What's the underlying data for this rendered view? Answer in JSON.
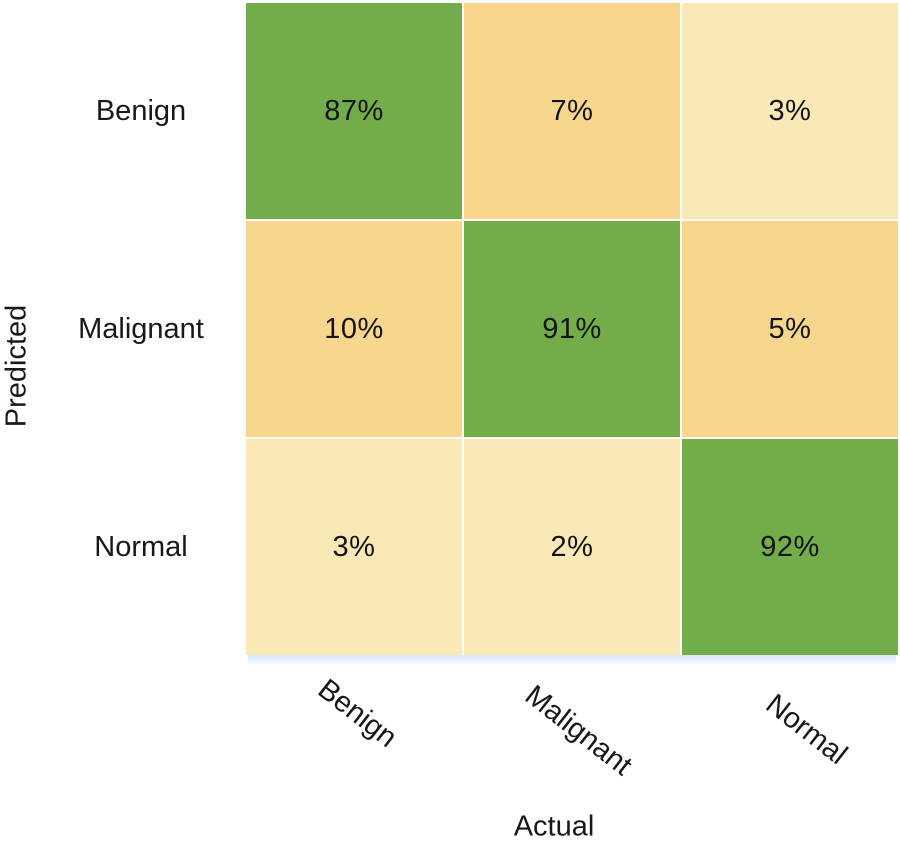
{
  "chart_data": {
    "type": "heatmap",
    "chart_kind": "confusion matrix",
    "title": "",
    "xlabel": "Actual",
    "ylabel": "Predicted",
    "x_categories": [
      "Benign",
      "Malignant",
      "Normal"
    ],
    "y_categories": [
      "Benign",
      "Malignant",
      "Normal"
    ],
    "values_percent": [
      [
        87,
        7,
        3
      ],
      [
        10,
        91,
        5
      ],
      [
        3,
        2,
        92
      ]
    ],
    "cells": [
      {
        "row": "Benign",
        "col": "Benign",
        "label": "87%",
        "value": 87,
        "color": "#73ad4a"
      },
      {
        "row": "Benign",
        "col": "Malignant",
        "label": "7%",
        "value": 7,
        "color": "#f8d68e"
      },
      {
        "row": "Benign",
        "col": "Normal",
        "label": "3%",
        "value": 3,
        "color": "#fae8b6"
      },
      {
        "row": "Malignant",
        "col": "Benign",
        "label": "10%",
        "value": 10,
        "color": "#f8d68e"
      },
      {
        "row": "Malignant",
        "col": "Malignant",
        "label": "91%",
        "value": 91,
        "color": "#73ad4a"
      },
      {
        "row": "Malignant",
        "col": "Normal",
        "label": "5%",
        "value": 5,
        "color": "#f8d68e"
      },
      {
        "row": "Normal",
        "col": "Benign",
        "label": "3%",
        "value": 3,
        "color": "#fae8b6"
      },
      {
        "row": "Normal",
        "col": "Malignant",
        "label": "2%",
        "value": 2,
        "color": "#fae8b6"
      },
      {
        "row": "Normal",
        "col": "Normal",
        "label": "92%",
        "value": 92,
        "color": "#73ad4a"
      }
    ],
    "palette": {
      "diagonal_green": "#73ad4a",
      "mid_tan": "#f8d68e",
      "light_cream": "#fae8b6",
      "cell_gap_white": "#ffffff",
      "text_dark": "#17171f"
    },
    "layout": {
      "grid": "3x3",
      "legend": "none",
      "x_tick_rotation_deg": 38,
      "y_title_rotation_deg": -90
    }
  }
}
